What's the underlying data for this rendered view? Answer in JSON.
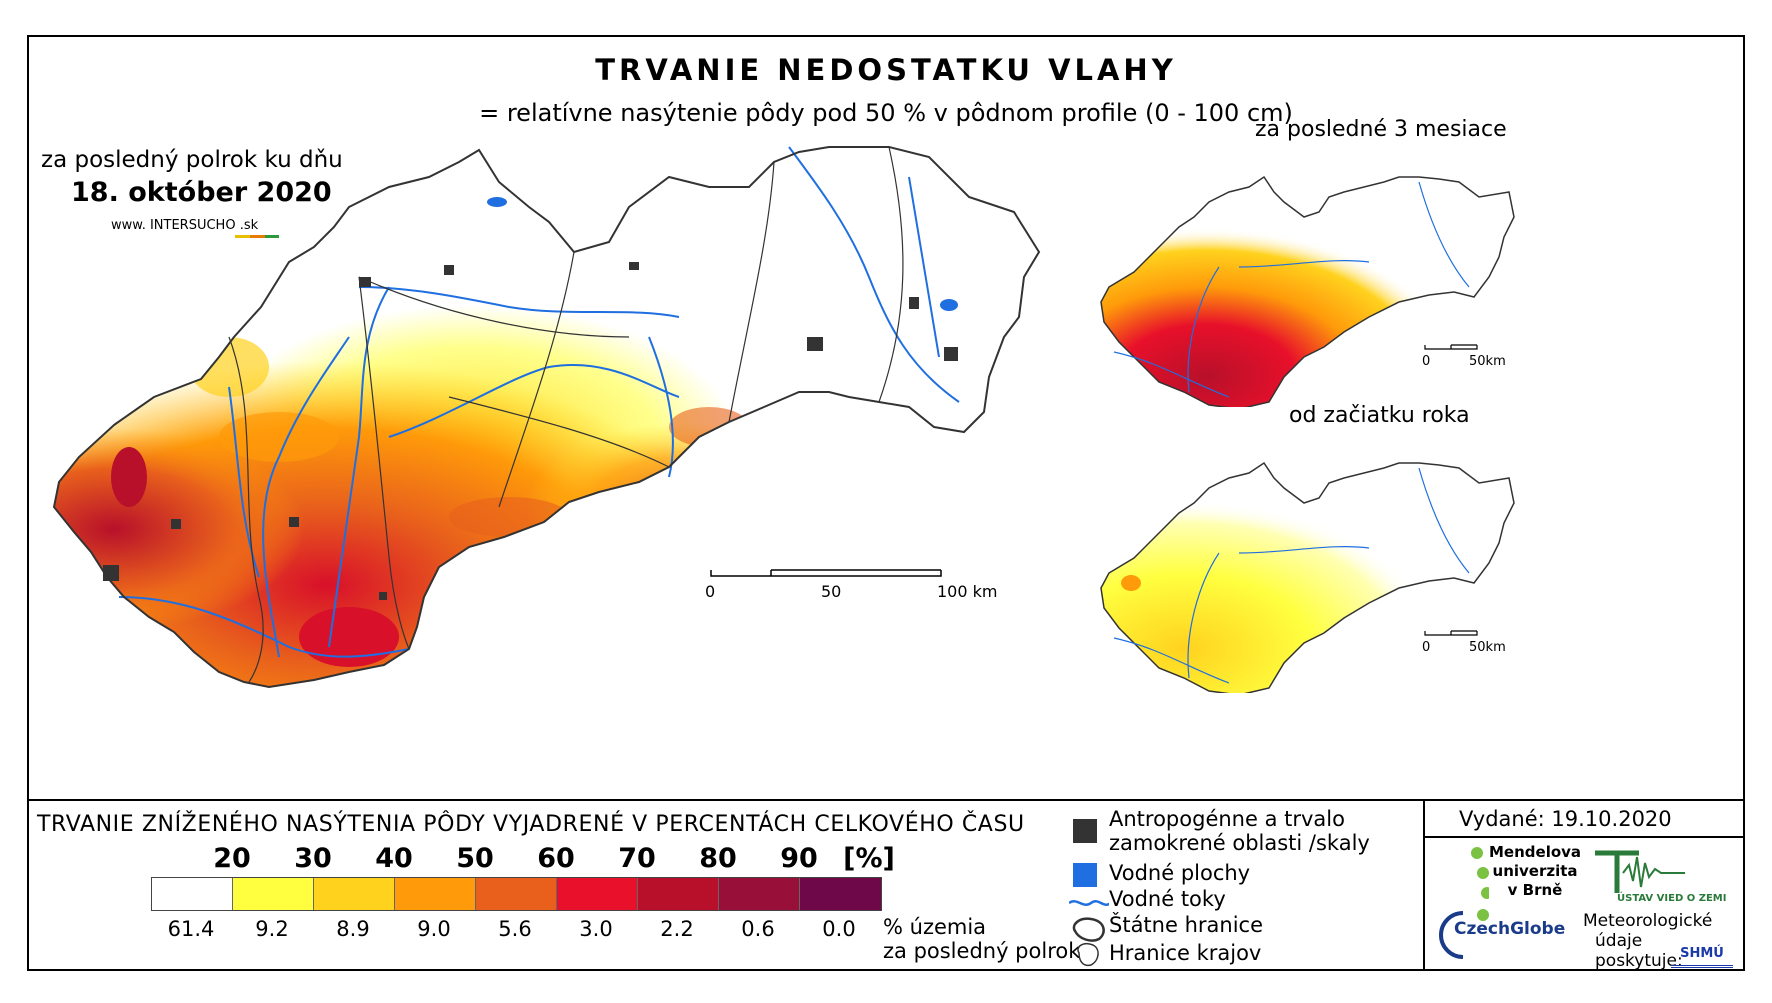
{
  "header": {
    "title": "TRVANIE NEDOSTATKU VLAHY",
    "subtitle": "= relatívne nasýtenie pôdy pod 50 % v pôdnom profile (0 - 100 cm)"
  },
  "main_map": {
    "period_label": "za posledný polrok ku dňu",
    "date": "18. október 2020",
    "website": "www. INTERSUCHO .sk",
    "scale_labels": [
      "0",
      "50",
      "100 km"
    ]
  },
  "inset_3m": {
    "label": "za posledné 3 mesiace",
    "scale_labels": [
      "0",
      "50km"
    ]
  },
  "inset_year": {
    "label": "od začiatku roka",
    "scale_labels": [
      "0",
      "50km"
    ]
  },
  "legend": {
    "title": "TRVANIE ZNÍŽENÉHO NASÝTENIA PÔDY VYJADRENÉ V PERCENTÁCH CELKOVÉHO ČASU",
    "thresholds": [
      "20",
      "30",
      "40",
      "50",
      "60",
      "70",
      "80",
      "90"
    ],
    "unit": "[%]",
    "classes": [
      {
        "color": "#ffffff",
        "share": "61.4"
      },
      {
        "color": "#ffff40",
        "share": "9.2"
      },
      {
        "color": "#ffd21e",
        "share": "8.9"
      },
      {
        "color": "#ff9a0a",
        "share": "9.0"
      },
      {
        "color": "#e8601c",
        "share": "5.6"
      },
      {
        "color": "#e8102a",
        "share": "3.0"
      },
      {
        "color": "#b8102a",
        "share": "2.2"
      },
      {
        "color": "#98103a",
        "share": "0.6"
      },
      {
        "color": "#6e0848",
        "share": "0.0"
      }
    ],
    "share_note_1": "% územia",
    "share_note_2": "za posledný polrok"
  },
  "map_key": {
    "anthropogenic_1": "Antropogénne a trvalo",
    "anthropogenic_2": "zamokrené oblasti /skaly",
    "water_bodies": "Vodné plochy",
    "rivers": "Vodné toky",
    "state_border": "Štátne hranice",
    "region_border": "Hranice krajov"
  },
  "footer": {
    "issued": "Vydané: 19.10.2020",
    "mendel_1": "Mendelova",
    "mendel_2": "univerzita",
    "mendel_3": "v Brně",
    "czechglobe": "CzechGlobe",
    "ustav": "ÚSTAV VIED O ZEMI",
    "meteo_1": "Meteorologické",
    "meteo_2": "údaje",
    "meteo_3": "poskytuje:",
    "shmu": "SHMÚ"
  },
  "colors": {
    "water": "#1f6fe0",
    "anthropogenic": "#333333",
    "border": "#333333"
  }
}
